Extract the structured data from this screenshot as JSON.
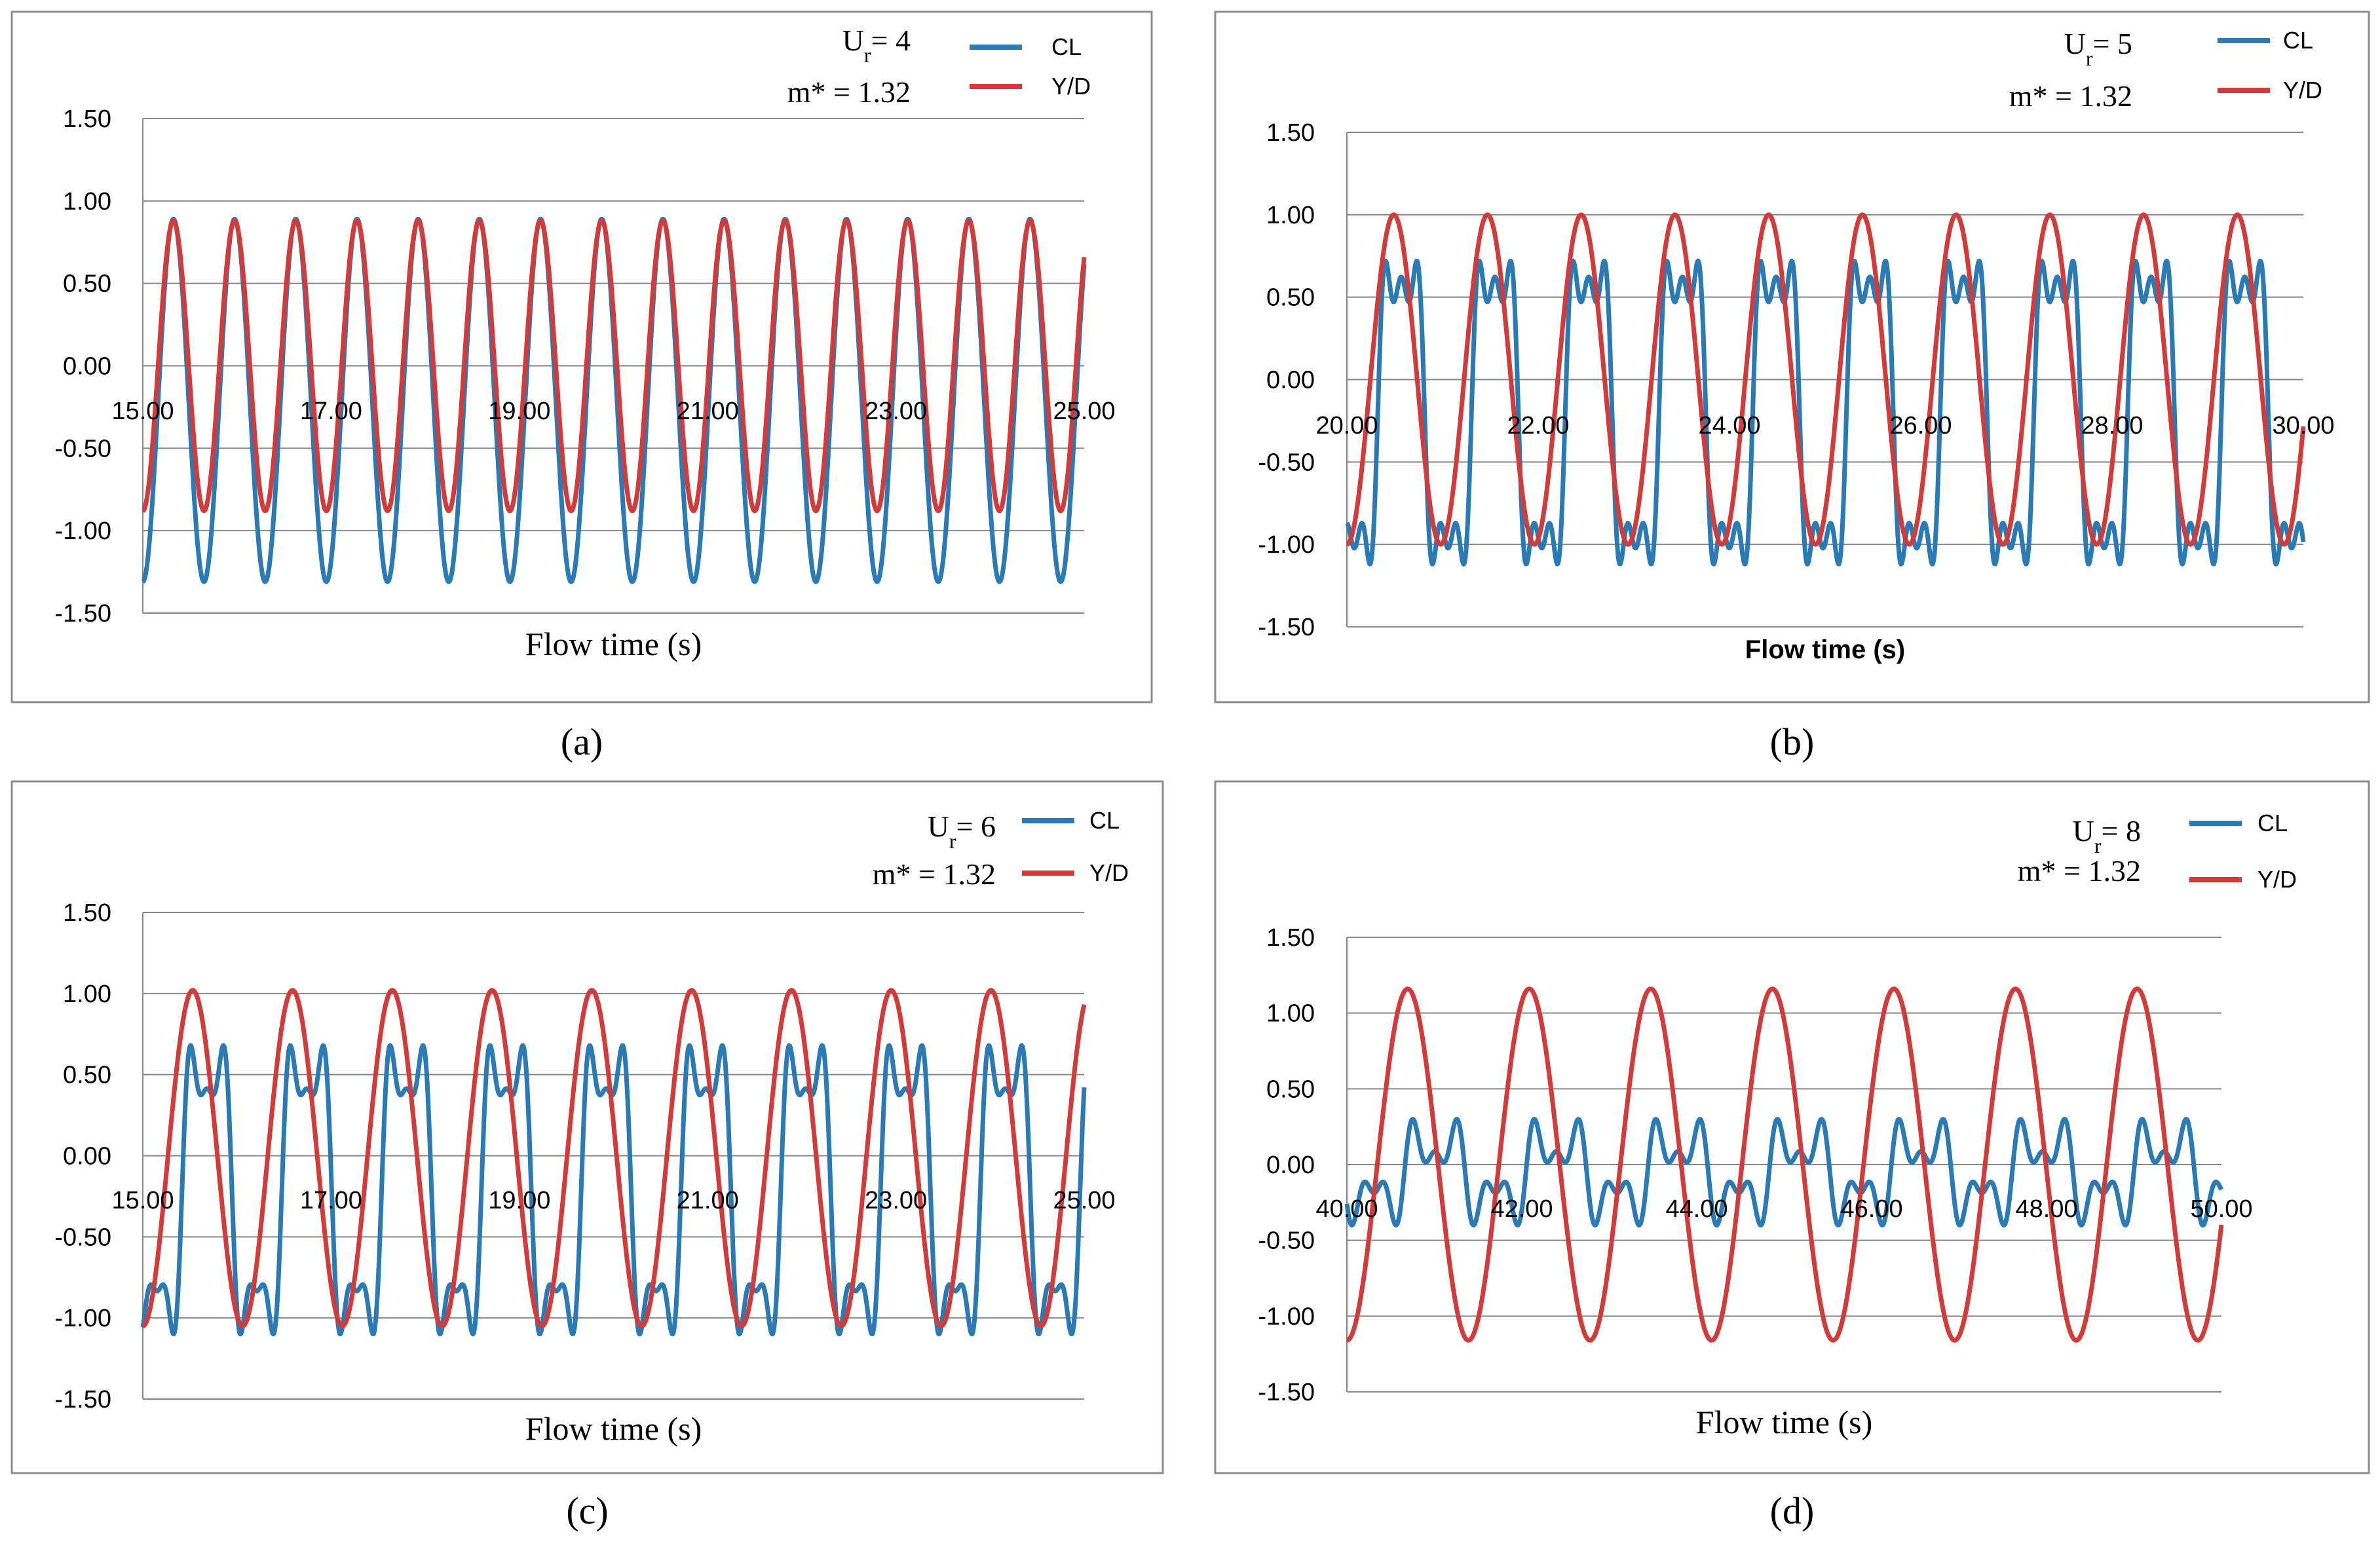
{
  "figure": {
    "panels": [
      {
        "caption": "(a)",
        "annotation": {
          "ur_label": "U",
          "ur_sub": "r",
          "ur_value": "= 4",
          "mass_label": "m* = 1.32"
        }
      },
      {
        "caption": "(b)",
        "annotation": {
          "ur_label": "U",
          "ur_sub": "r",
          "ur_value": "= 5",
          "mass_label": "m* = 1.32"
        }
      },
      {
        "caption": "(c)",
        "annotation": {
          "ur_label": "U",
          "ur_sub": "r",
          "ur_value": "= 6",
          "mass_label": "m* = 1.32"
        }
      },
      {
        "caption": "(d)",
        "annotation": {
          "ur_label": "U",
          "ur_sub": "r",
          "ur_value": "= 8",
          "mass_label": "m* = 1.32"
        }
      }
    ]
  },
  "chart_data": [
    {
      "type": "line",
      "title": "Ur = 4, m* = 1.32",
      "xlabel": "Flow time (s)",
      "ylabel": "",
      "xlim": [
        15,
        25
      ],
      "ylim": [
        -1.5,
        1.5
      ],
      "xticks": [
        "15.00",
        "17.00",
        "19.00",
        "21.00",
        "23.00",
        "25.00"
      ],
      "yticks": [
        "1.50",
        "1.00",
        "0.50",
        "0.00",
        "-0.50",
        "-1.00",
        "-1.50"
      ],
      "grid": true,
      "legend_position": "top-right",
      "series": [
        {
          "name": "CL",
          "color": "#2a7ab5",
          "amplitude_max": 0.89,
          "amplitude_min": -1.31,
          "period_s": 0.65,
          "description": "sinusoidal, in phase with Y/D, sharper negative troughs"
        },
        {
          "name": "Y/D",
          "color": "#d33b3b",
          "amplitude_max": 0.88,
          "amplitude_min": -0.88,
          "period_s": 0.65,
          "description": "sinusoidal"
        }
      ]
    },
    {
      "type": "line",
      "title": "Ur = 5, m* = 1.32",
      "xlabel": "Flow time (s)",
      "ylabel": "",
      "xlim": [
        20,
        30
      ],
      "ylim": [
        -1.5,
        1.5
      ],
      "xticks": [
        "20.00",
        "22.00",
        "24.00",
        "26.00",
        "28.00",
        "30.00"
      ],
      "yticks": [
        "1.50",
        "1.00",
        "0.50",
        "0.00",
        "-0.50",
        "-1.00",
        "-1.50"
      ],
      "grid": true,
      "legend_position": "top-right",
      "series": [
        {
          "name": "CL",
          "color": "#2a7ab5",
          "amplitude_max": 0.72,
          "amplitude_min": -1.12,
          "period_s": 0.98,
          "description": "multi-harmonic response"
        },
        {
          "name": "Y/D",
          "color": "#d33b3b",
          "amplitude_max": 1.0,
          "amplitude_min": -1.0,
          "period_s": 0.98,
          "description": "sinusoidal"
        }
      ]
    },
    {
      "type": "line",
      "title": "Ur = 6, m* = 1.32",
      "xlabel": "Flow time (s)",
      "ylabel": "",
      "xlim": [
        15,
        25
      ],
      "ylim": [
        -1.5,
        1.5
      ],
      "xticks": [
        "15.00",
        "17.00",
        "19.00",
        "21.00",
        "23.00",
        "25.00"
      ],
      "yticks": [
        "1.50",
        "1.00",
        "0.50",
        "0.00",
        "-0.50",
        "-1.00",
        "-1.50"
      ],
      "grid": true,
      "legend_position": "top-right",
      "series": [
        {
          "name": "CL",
          "color": "#2a7ab5",
          "amplitude_max": 0.68,
          "amplitude_min": -1.1,
          "period_s": 1.06,
          "description": "multi-harmonic response"
        },
        {
          "name": "Y/D",
          "color": "#d33b3b",
          "amplitude_max": 1.02,
          "amplitude_min": -1.05,
          "period_s": 1.06,
          "description": "sinusoidal"
        }
      ]
    },
    {
      "type": "line",
      "title": "Ur = 8, m* = 1.32",
      "xlabel": "Flow time (s)",
      "ylabel": "",
      "xlim": [
        40,
        50
      ],
      "ylim": [
        -1.5,
        1.5
      ],
      "xticks": [
        "40.00",
        "42.00",
        "44.00",
        "46.00",
        "48.00",
        "50.00"
      ],
      "yticks": [
        "1.50",
        "1.00",
        "0.50",
        "0.00",
        "-0.50",
        "-1.00",
        "-1.50"
      ],
      "grid": true,
      "legend_position": "top-right",
      "series": [
        {
          "name": "CL",
          "color": "#2a7ab5",
          "amplitude_max": 0.3,
          "amplitude_min": -0.4,
          "period_s": 1.39,
          "description": "small multi-harmonic response"
        },
        {
          "name": "Y/D",
          "color": "#d33b3b",
          "amplitude_max": 1.16,
          "amplitude_min": -1.16,
          "period_s": 1.39,
          "description": "sinusoidal"
        }
      ]
    }
  ]
}
